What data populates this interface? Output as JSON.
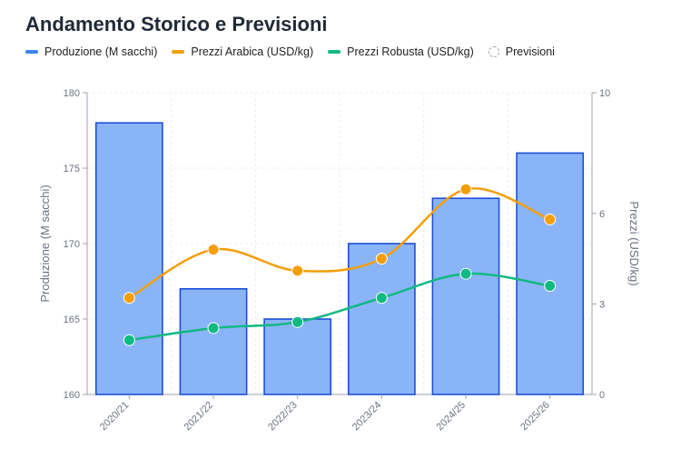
{
  "chart_data": {
    "type": "bar",
    "title": "Andamento Storico e Previsioni",
    "categories": [
      "2020/21",
      "2021/22",
      "2022/23",
      "2023/24",
      "2024/25",
      "2025/26"
    ],
    "series": [
      {
        "name": "Produzione (M sacchi)",
        "type": "bar",
        "axis": "left",
        "color": "#3b82f6",
        "values": [
          178,
          167,
          165,
          170,
          173,
          176
        ]
      },
      {
        "name": "Prezzi Arabica (USD/kg)",
        "type": "line",
        "axis": "right",
        "color": "#f59e0b",
        "values": [
          3.2,
          4.8,
          4.1,
          4.5,
          6.8,
          5.8
        ]
      },
      {
        "name": "Prezzi Robusta (USD/kg)",
        "type": "line",
        "axis": "right",
        "color": "#10b981",
        "values": [
          1.8,
          2.2,
          2.4,
          3.2,
          4.0,
          3.6
        ]
      }
    ],
    "legend_extra": "Previsioni",
    "ylabel_left": "Produzione (M sacchi)",
    "ylabel_right": "Prezzi (USD/kg)",
    "ylim_left": [
      160,
      180
    ],
    "yticks_left": [
      160,
      165,
      170,
      175,
      180
    ],
    "ylim_right": [
      0,
      10
    ],
    "yticks_right": [
      0,
      3,
      6,
      10
    ],
    "grid": true,
    "legend_position": "top-left"
  }
}
